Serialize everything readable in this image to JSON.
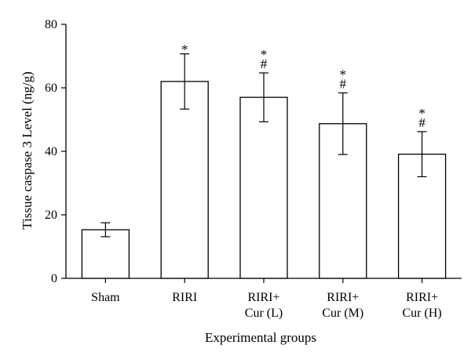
{
  "chart_data": {
    "type": "bar",
    "xlabel": "Experimental groups",
    "ylabel": "Tissue caspase 3 Level (ng/g)",
    "ylim": [
      0,
      80
    ],
    "yticks": [
      0,
      20,
      40,
      60,
      80
    ],
    "categories": [
      [
        "Sham"
      ],
      [
        "RIRI"
      ],
      [
        "RIRI+",
        "Cur (L)"
      ],
      [
        "RIRI+",
        "Cur (M)"
      ],
      [
        "RIRI+",
        "Cur (H)"
      ]
    ],
    "values": [
      15.3,
      62.0,
      57.0,
      48.7,
      39.1
    ],
    "errors": [
      2.2,
      8.7,
      7.7,
      9.7,
      7.1
    ],
    "significance": [
      [],
      [
        "*"
      ],
      [
        "*",
        "#"
      ],
      [
        "*",
        "#"
      ],
      [
        "*",
        "#"
      ]
    ],
    "grid": false,
    "legend": "none"
  }
}
